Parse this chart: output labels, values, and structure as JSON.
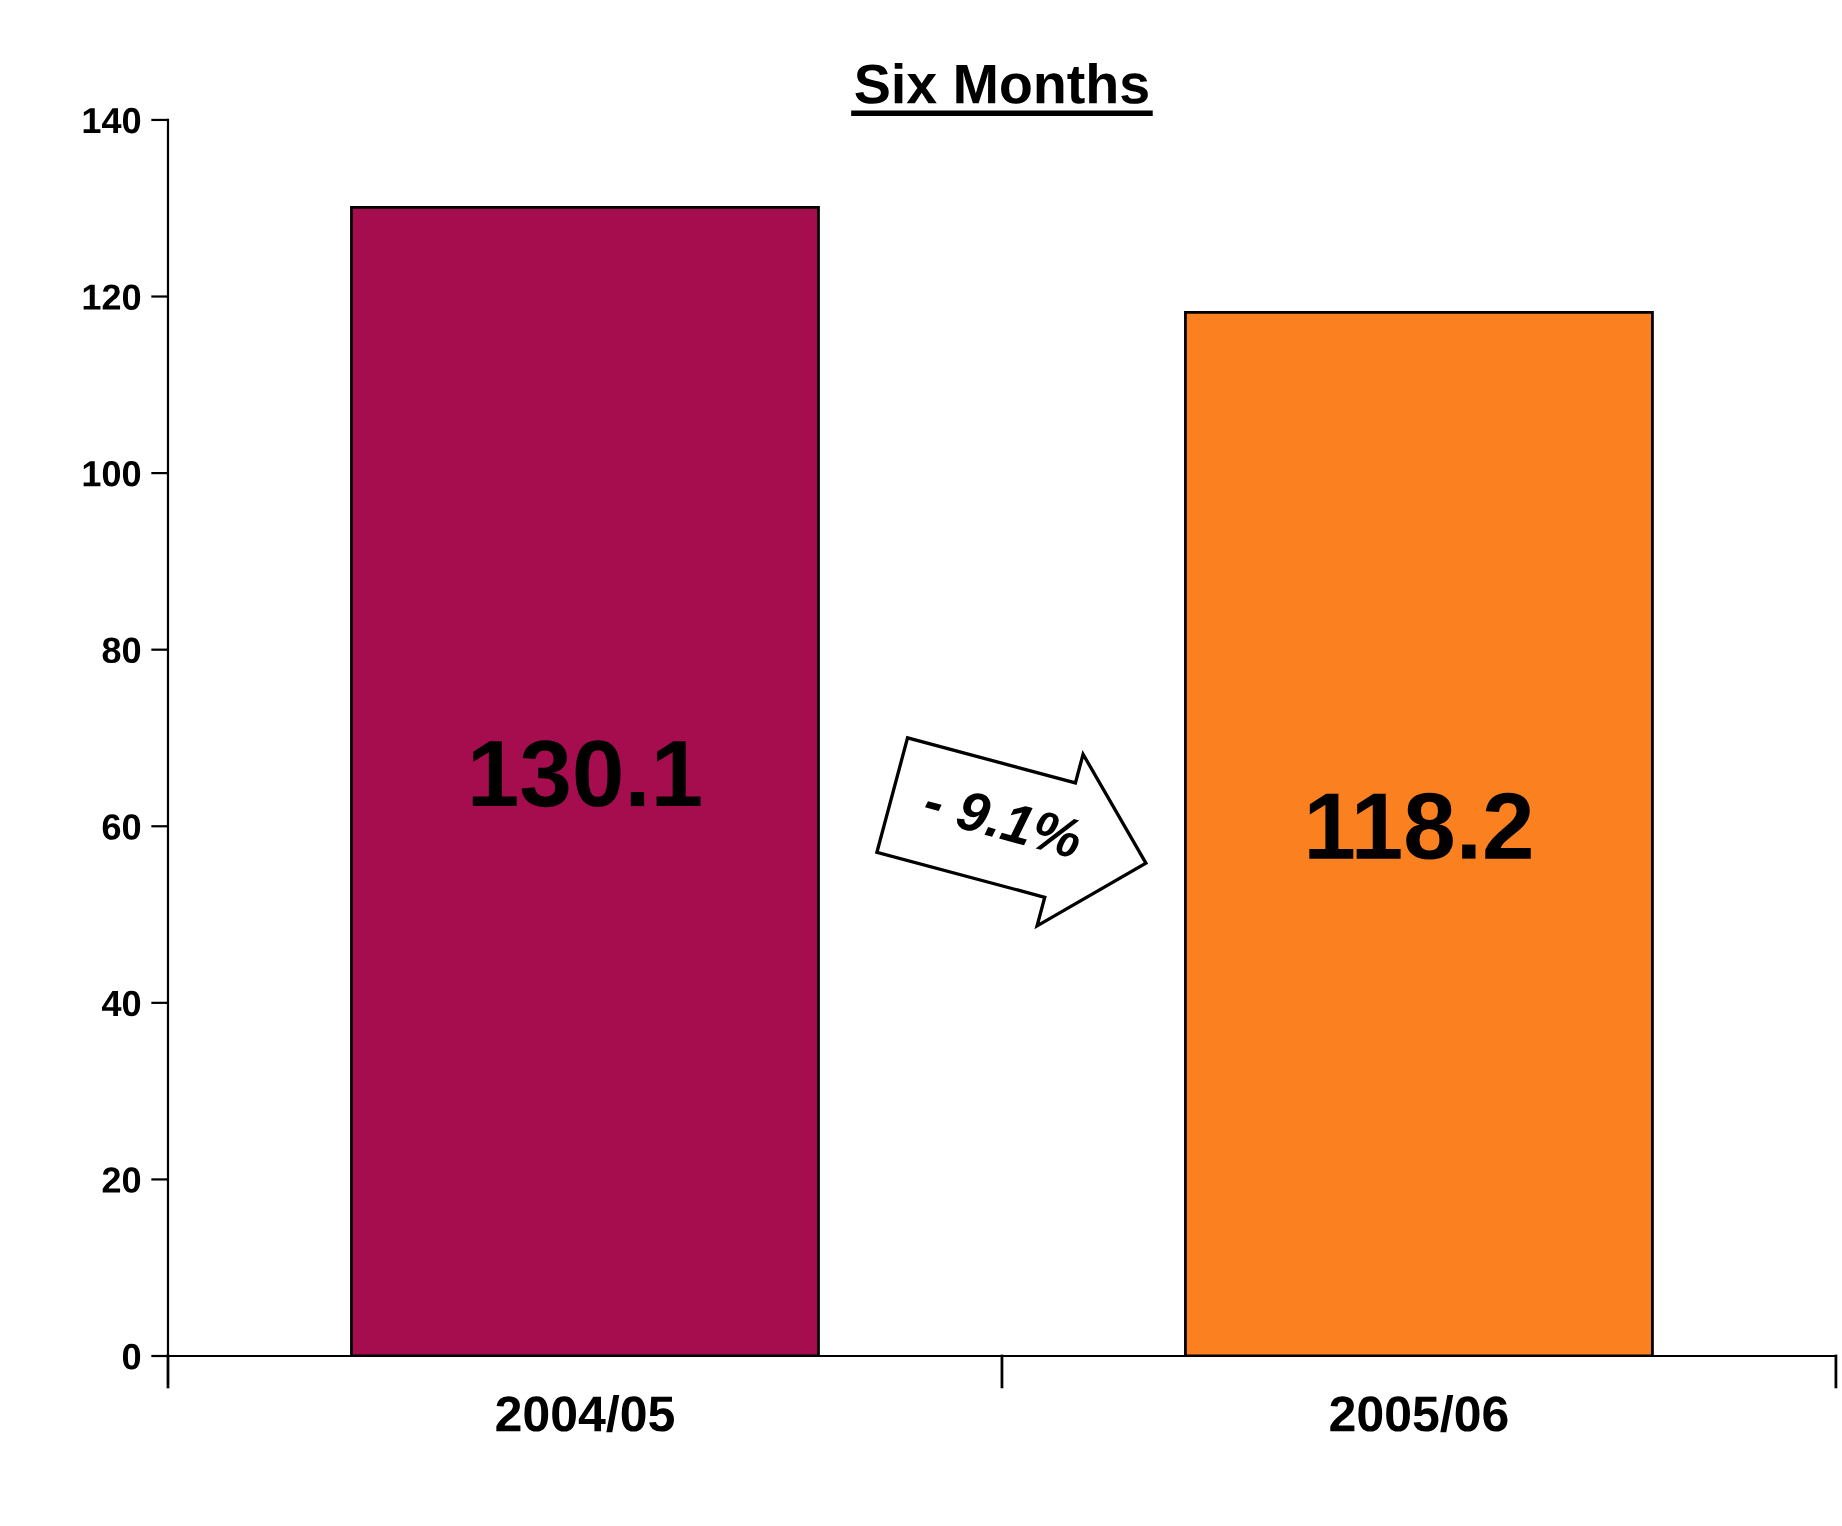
{
  "chart_data": {
    "type": "bar",
    "title": "Six Months",
    "categories": [
      "2004/05",
      "2005/06"
    ],
    "values": [
      130.1,
      118.2
    ],
    "colors": [
      "#a50d4e",
      "#fb8020"
    ],
    "ylim": [
      0,
      140
    ],
    "yticks": [
      0,
      20,
      40,
      60,
      80,
      100,
      120,
      140
    ],
    "data_labels": true,
    "grid": false,
    "legend": false,
    "annotations": [
      "- 9.1%"
    ]
  }
}
